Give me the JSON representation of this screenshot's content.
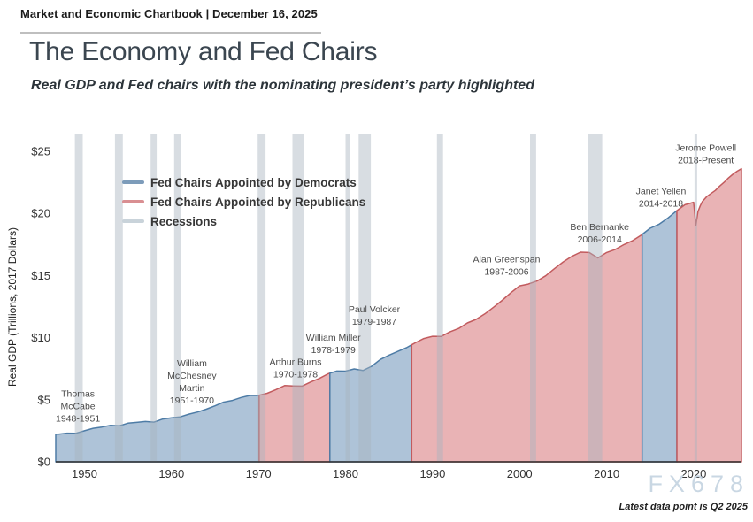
{
  "header": {
    "chartbook_label": "Market and Economic Chartbook | December 16, 2025"
  },
  "title": "The Economy and Fed Chairs",
  "subtitle": "Real GDP and Fed chairs with the nominating president’s party highlighted",
  "watermark": "FX678",
  "footnote": "Latest data point is Q2 2025",
  "chart_data": {
    "type": "area",
    "title": "The Economy and Fed Chairs",
    "subtitle": "Real GDP and Fed chairs with the nominating president’s party highlighted",
    "xlabel": "",
    "ylabel": "Real GDP (Trillions, 2017 Dollars)",
    "xlim": [
      1946.7,
      2025.5
    ],
    "ylim": [
      0,
      25
    ],
    "grid": false,
    "legend_position": "upper-left-inside",
    "xticks": [
      1950,
      1960,
      1970,
      1980,
      1990,
      2000,
      2010,
      2020
    ],
    "yticks": [
      {
        "v": 0,
        "label": "$0"
      },
      {
        "v": 5,
        "label": "$5"
      },
      {
        "v": 10,
        "label": "$10"
      },
      {
        "v": 15,
        "label": "$15"
      },
      {
        "v": 20,
        "label": "$20"
      },
      {
        "v": 25,
        "label": "$25"
      }
    ],
    "legend": [
      {
        "label": "Fed Chairs Appointed by Democrats",
        "swatch": "#7d9cba"
      },
      {
        "label": "Fed Chairs Appointed by Republicans",
        "swatch": "#d98f92"
      },
      {
        "label": "Recessions",
        "swatch": "#c9d3da"
      }
    ],
    "party_colors": {
      "D": {
        "fill": "#aec3d8",
        "line": "#4e7ca6"
      },
      "R": {
        "fill": "#e9b3b5",
        "line": "#c25b5e"
      }
    },
    "recession_fill": "rgba(168,180,190,0.45)",
    "chair_segments": [
      {
        "chairs": "Thomas McCabe; William McChesney Martin",
        "party": "D",
        "start": 1946.7,
        "end": 1970.08
      },
      {
        "chairs": "Arthur Burns",
        "party": "R",
        "start": 1970.08,
        "end": 1978.2
      },
      {
        "chairs": "William Miller; Paul Volcker",
        "party": "D",
        "start": 1978.2,
        "end": 1987.6
      },
      {
        "chairs": "Alan Greenspan; Ben Bernanke",
        "party": "R",
        "start": 1987.6,
        "end": 2014.08
      },
      {
        "chairs": "Janet Yellen",
        "party": "D",
        "start": 2014.08,
        "end": 2018.08
      },
      {
        "chairs": "Jerome Powell",
        "party": "R",
        "start": 2018.08,
        "end": 2025.5
      }
    ],
    "recessions": [
      [
        1948.9,
        1949.8
      ],
      [
        1953.5,
        1954.4
      ],
      [
        1957.6,
        1958.3
      ],
      [
        1960.3,
        1961.1
      ],
      [
        1969.9,
        1970.8
      ],
      [
        1973.9,
        1975.2
      ],
      [
        1980.0,
        1980.5
      ],
      [
        1981.5,
        1982.9
      ],
      [
        1990.5,
        1991.2
      ],
      [
        2001.2,
        2001.9
      ],
      [
        2007.9,
        2009.5
      ],
      [
        2020.1,
        2020.4
      ]
    ],
    "annotations": [
      {
        "name": "thomas-mccabe",
        "lines": [
          "Thomas",
          "McCabe",
          "1948-1951"
        ],
        "x": 1949.25,
        "y": 5.5
      },
      {
        "name": "william-martin",
        "lines": [
          "William",
          "McChesney",
          "Martin",
          "1951-1970"
        ],
        "x": 1962.35,
        "y": 7.95
      },
      {
        "name": "arthur-burns",
        "lines": [
          "Arthur Burns",
          "1970-1978"
        ],
        "x": 1974.25,
        "y": 8.05
      },
      {
        "name": "william-miller",
        "lines": [
          "William Miller",
          "1978-1979"
        ],
        "x": 1978.6,
        "y": 10.0
      },
      {
        "name": "paul-volcker",
        "lines": [
          "Paul Volcker",
          "1979-1987"
        ],
        "x": 1983.3,
        "y": 12.3
      },
      {
        "name": "alan-greenspan",
        "lines": [
          "Alan Greenspan",
          "1987-2006"
        ],
        "x": 1998.5,
        "y": 16.3
      },
      {
        "name": "ben-bernanke",
        "lines": [
          "Ben Bernanke",
          "2006-2014"
        ],
        "x": 2009.2,
        "y": 18.9
      },
      {
        "name": "janet-yellen",
        "lines": [
          "Janet Yellen",
          "2014-2018"
        ],
        "x": 2016.25,
        "y": 21.8
      },
      {
        "name": "jerome-powell",
        "lines": [
          "Jerome Powell",
          "2018-Present"
        ],
        "x": 2021.4,
        "y": 25.3
      }
    ],
    "gdp_points": [
      [
        1947,
        2.22
      ],
      [
        1948,
        2.31
      ],
      [
        1949,
        2.29
      ],
      [
        1950,
        2.5
      ],
      [
        1951,
        2.7
      ],
      [
        1952,
        2.8
      ],
      [
        1953,
        2.94
      ],
      [
        1954,
        2.9
      ],
      [
        1955,
        3.11
      ],
      [
        1956,
        3.18
      ],
      [
        1957,
        3.25
      ],
      [
        1958,
        3.2
      ],
      [
        1959,
        3.45
      ],
      [
        1960,
        3.54
      ],
      [
        1961,
        3.62
      ],
      [
        1962,
        3.84
      ],
      [
        1963,
        4.01
      ],
      [
        1964,
        4.24
      ],
      [
        1965,
        4.51
      ],
      [
        1966,
        4.81
      ],
      [
        1967,
        4.94
      ],
      [
        1968,
        5.18
      ],
      [
        1969,
        5.34
      ],
      [
        1970,
        5.35
      ],
      [
        1971,
        5.52
      ],
      [
        1972,
        5.81
      ],
      [
        1973,
        6.14
      ],
      [
        1974,
        6.11
      ],
      [
        1975,
        6.1
      ],
      [
        1976,
        6.43
      ],
      [
        1977,
        6.72
      ],
      [
        1978,
        7.09
      ],
      [
        1979,
        7.31
      ],
      [
        1980,
        7.3
      ],
      [
        1981,
        7.48
      ],
      [
        1982,
        7.35
      ],
      [
        1983,
        7.69
      ],
      [
        1984,
        8.24
      ],
      [
        1985,
        8.59
      ],
      [
        1986,
        8.89
      ],
      [
        1987,
        9.19
      ],
      [
        1988,
        9.58
      ],
      [
        1989,
        9.93
      ],
      [
        1990,
        10.11
      ],
      [
        1991,
        10.1
      ],
      [
        1992,
        10.46
      ],
      [
        1993,
        10.74
      ],
      [
        1994,
        11.18
      ],
      [
        1995,
        11.47
      ],
      [
        1996,
        11.91
      ],
      [
        1997,
        12.44
      ],
      [
        1998,
        13.0
      ],
      [
        1999,
        13.62
      ],
      [
        2000,
        14.17
      ],
      [
        2001,
        14.31
      ],
      [
        2002,
        14.56
      ],
      [
        2003,
        14.98
      ],
      [
        2004,
        15.55
      ],
      [
        2005,
        16.09
      ],
      [
        2006,
        16.54
      ],
      [
        2007,
        16.88
      ],
      [
        2008,
        16.85
      ],
      [
        2009,
        16.42
      ],
      [
        2010,
        16.85
      ],
      [
        2011,
        17.1
      ],
      [
        2012,
        17.49
      ],
      [
        2013,
        17.81
      ],
      [
        2014,
        18.26
      ],
      [
        2015,
        18.8
      ],
      [
        2016,
        19.12
      ],
      [
        2017,
        19.6
      ],
      [
        2018,
        20.18
      ],
      [
        2019,
        20.7
      ],
      [
        2020.0,
        20.9
      ],
      [
        2020.25,
        19.03
      ],
      [
        2020.5,
        20.15
      ],
      [
        2020.75,
        20.6
      ],
      [
        2021,
        20.95
      ],
      [
        2021.5,
        21.35
      ],
      [
        2022,
        21.6
      ],
      [
        2022.5,
        21.85
      ],
      [
        2023,
        22.2
      ],
      [
        2023.5,
        22.5
      ],
      [
        2024,
        22.85
      ],
      [
        2024.5,
        23.15
      ],
      [
        2025,
        23.4
      ],
      [
        2025.5,
        23.6
      ]
    ]
  }
}
